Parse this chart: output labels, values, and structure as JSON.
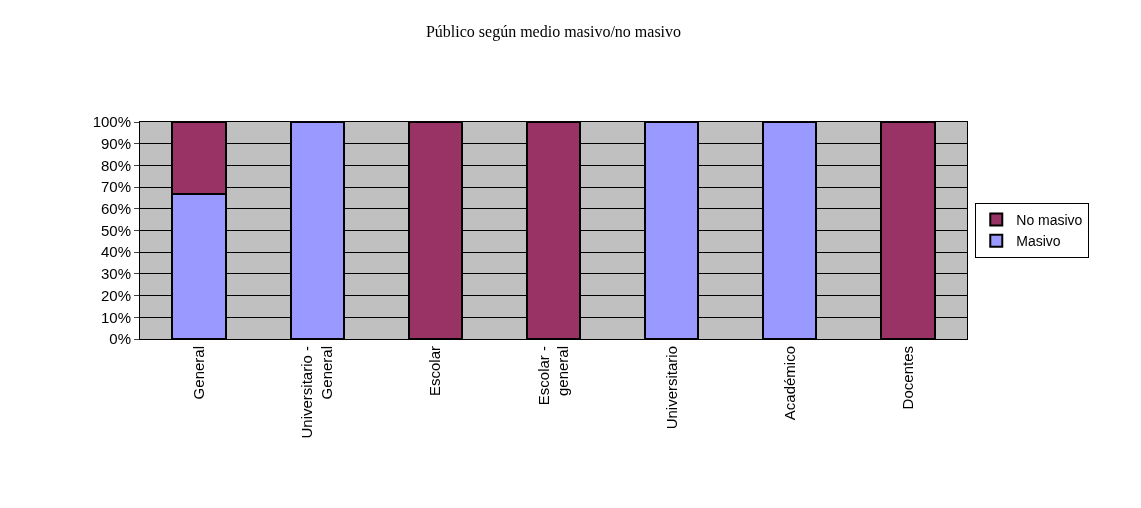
{
  "chart_data": {
    "type": "bar",
    "title": "Público según medio masivo/no masivo",
    "categories": [
      "General",
      "Universitario - General",
      "Escolar",
      "Escolar - general",
      "Universitario",
      "Académico",
      "Docentes"
    ],
    "series": [
      {
        "name": "Masivo",
        "color": "#9999ff",
        "values": [
          67,
          100,
          0,
          0,
          100,
          100,
          0
        ]
      },
      {
        "name": "No masivo",
        "color": "#993366",
        "values": [
          33,
          0,
          100,
          100,
          0,
          0,
          100
        ]
      }
    ],
    "stacked": true,
    "ylim": [
      0,
      100
    ],
    "yticks": [
      {
        "value": 0,
        "label": "0%"
      },
      {
        "value": 10,
        "label": "10%"
      },
      {
        "value": 20,
        "label": "20%"
      },
      {
        "value": 30,
        "label": "30%"
      },
      {
        "value": 40,
        "label": "40%"
      },
      {
        "value": 50,
        "label": "50%"
      },
      {
        "value": 60,
        "label": "60%"
      },
      {
        "value": 70,
        "label": "70%"
      },
      {
        "value": 80,
        "label": "80%"
      },
      {
        "value": 90,
        "label": "90%"
      },
      {
        "value": 100,
        "label": "100%"
      }
    ],
    "grid": "y",
    "legend": "right"
  }
}
